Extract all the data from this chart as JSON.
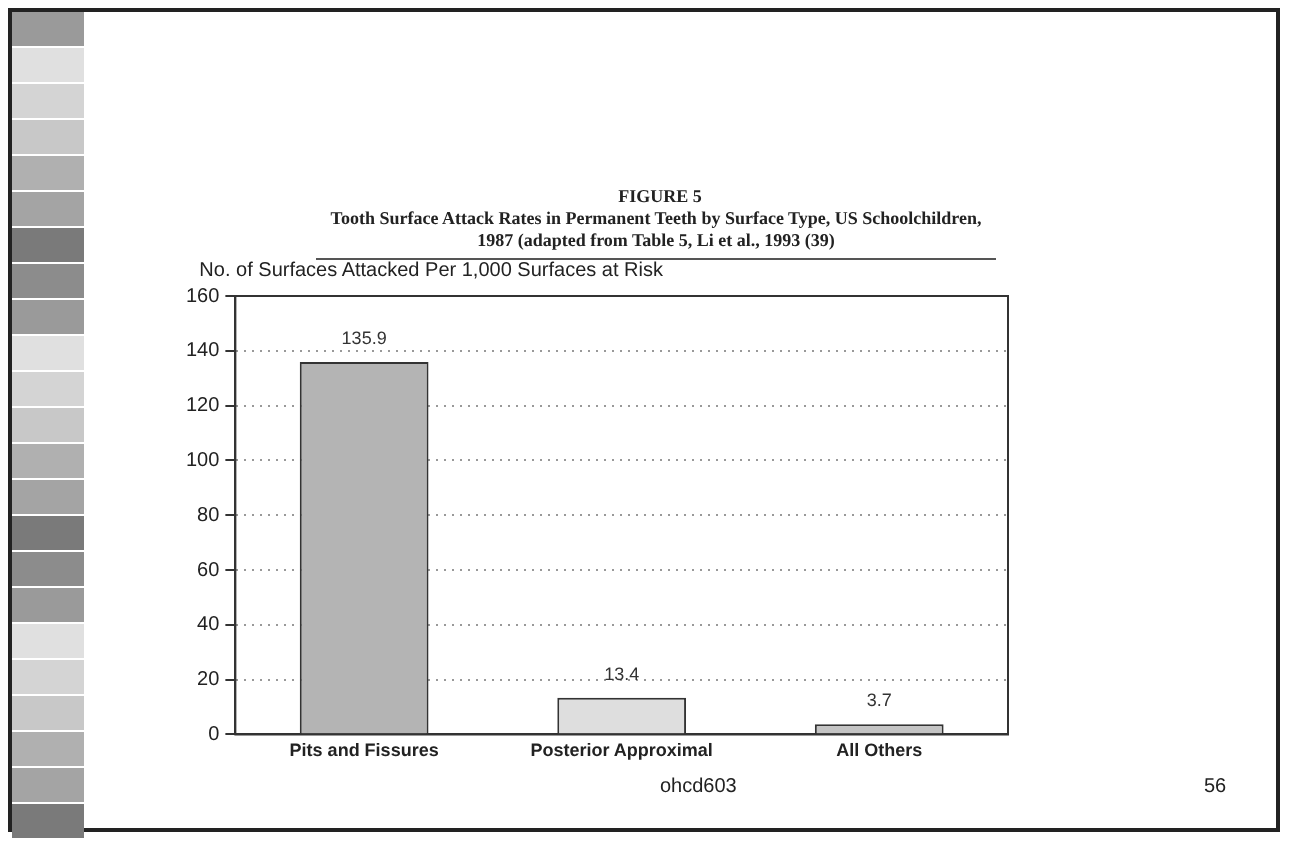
{
  "chart_data": {
    "type": "bar",
    "title": "FIGURE 5",
    "subtitle": "Tooth Surface Attack Rates in Permanent Teeth by Surface Type, US Schoolchildren, 1987 (adapted from Table 5, Li et al., 1993 (39)",
    "ylabel": "No. of Surfaces Attacked Per 1,000 Surfaces at Risk",
    "categories": [
      "Pits and Fissures",
      "Posterior Approximal",
      "All Others"
    ],
    "values": [
      135.9,
      13.4,
      3.7
    ],
    "colors": [
      "#b4b4b4",
      "#dedede",
      "#c4c4c4"
    ],
    "ylim": [
      0,
      160
    ],
    "yticks": [
      0,
      20,
      40,
      60,
      80,
      100,
      120,
      140,
      160
    ],
    "grid": "y",
    "data_labels": true,
    "legend": false,
    "annotations": [
      "ohcd603",
      "56"
    ]
  }
}
